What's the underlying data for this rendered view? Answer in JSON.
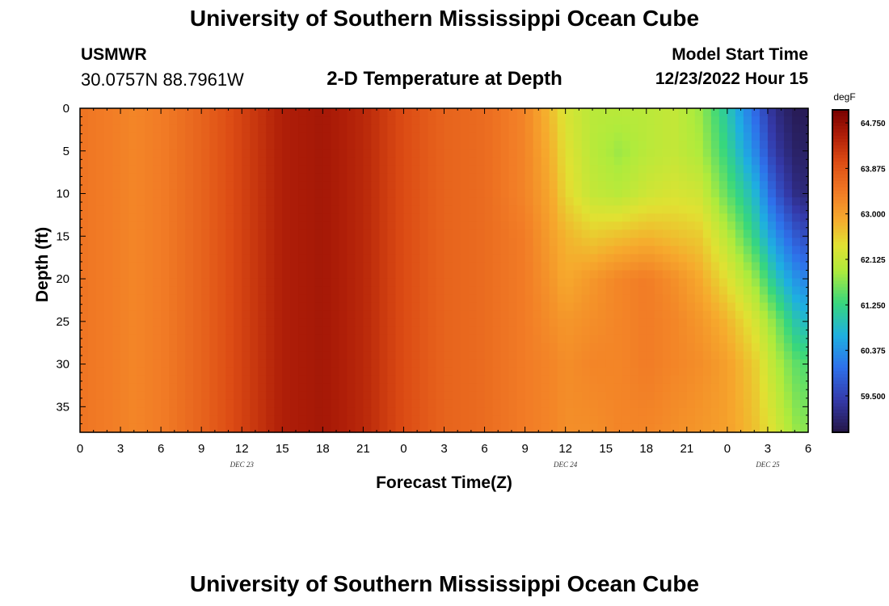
{
  "header": {
    "title": "University of Southern Mississippi Ocean Cube",
    "station": "USMWR",
    "coordinates": "30.0757N  88.7961W",
    "subtitle": "2-D Temperature at Depth",
    "start_label": "Model Start Time",
    "start_value": "12/23/2022 Hour 15"
  },
  "footer": {
    "title": "University of Southern Mississippi Ocean Cube"
  },
  "chart_data": {
    "type": "heatmap",
    "xlabel": "Forecast Time(Z)",
    "ylabel": "Depth (ft)",
    "x_tick_labels": [
      "0",
      "3",
      "6",
      "9",
      "12",
      "15",
      "18",
      "21",
      "0",
      "3",
      "6",
      "9",
      "12",
      "15",
      "18",
      "21",
      "0",
      "3",
      "6"
    ],
    "x_range_hours": [
      0,
      54
    ],
    "date_labels": [
      {
        "text": "DEC 23",
        "hour": 12
      },
      {
        "text": "DEC 24",
        "hour": 36
      },
      {
        "text": "DEC 25",
        "hour": 51
      }
    ],
    "y_ticks": [
      0,
      5,
      10,
      15,
      20,
      25,
      30,
      35
    ],
    "y_range": [
      0,
      38
    ],
    "y_inverted": true,
    "colorbar": {
      "unit": "degF",
      "labels": [
        "64.750",
        "63.875",
        "63.000",
        "62.125",
        "61.250",
        "60.375",
        "59.500"
      ],
      "range": [
        58.8,
        65.0
      ]
    },
    "value_grid": {
      "hours": [
        0,
        4,
        6,
        9,
        12,
        15,
        18,
        21,
        24,
        27,
        30,
        33,
        35,
        36,
        38,
        40,
        42,
        44,
        46,
        48,
        50,
        51.5,
        53,
        54
      ],
      "depths": [
        0,
        5,
        10,
        15,
        20,
        25,
        30,
        38
      ],
      "temps_degF": [
        [
          63.5,
          63.3,
          63.4,
          63.7,
          64.1,
          64.5,
          64.6,
          64.4,
          64.0,
          63.7,
          63.6,
          63.3,
          62.7,
          62.3,
          62.0,
          62.0,
          62.0,
          62.1,
          61.8,
          61.0,
          60.0,
          59.2,
          58.9,
          58.9
        ],
        [
          63.5,
          63.3,
          63.4,
          63.7,
          64.1,
          64.5,
          64.6,
          64.4,
          64.0,
          63.7,
          63.6,
          63.3,
          62.8,
          62.4,
          62.0,
          61.8,
          62.0,
          62.1,
          61.9,
          61.2,
          60.3,
          59.4,
          59.0,
          59.0
        ],
        [
          63.5,
          63.3,
          63.4,
          63.7,
          64.1,
          64.5,
          64.6,
          64.4,
          64.0,
          63.7,
          63.6,
          63.3,
          62.9,
          62.5,
          62.1,
          62.0,
          62.2,
          62.3,
          62.2,
          61.5,
          60.8,
          59.8,
          59.2,
          59.1
        ],
        [
          63.5,
          63.3,
          63.4,
          63.7,
          64.1,
          64.5,
          64.6,
          64.4,
          64.0,
          63.7,
          63.6,
          63.4,
          63.0,
          62.8,
          62.6,
          62.7,
          62.8,
          62.7,
          62.6,
          62.0,
          61.2,
          60.4,
          59.8,
          59.6
        ],
        [
          63.5,
          63.3,
          63.4,
          63.7,
          64.1,
          64.5,
          64.6,
          64.4,
          64.0,
          63.7,
          63.6,
          63.4,
          63.1,
          62.9,
          63.1,
          63.3,
          63.4,
          63.2,
          62.9,
          62.4,
          61.8,
          61.0,
          60.4,
          60.2
        ],
        [
          63.5,
          63.3,
          63.4,
          63.7,
          64.1,
          64.5,
          64.6,
          64.4,
          64.0,
          63.7,
          63.6,
          63.4,
          63.2,
          63.1,
          63.2,
          63.3,
          63.4,
          63.3,
          63.1,
          62.8,
          62.3,
          61.7,
          61.0,
          60.8
        ],
        [
          63.5,
          63.3,
          63.4,
          63.7,
          64.1,
          64.5,
          64.6,
          64.4,
          64.0,
          63.7,
          63.6,
          63.4,
          63.3,
          63.2,
          63.3,
          63.3,
          63.4,
          63.3,
          63.2,
          63.0,
          62.6,
          62.0,
          61.5,
          61.4
        ],
        [
          63.5,
          63.3,
          63.4,
          63.7,
          64.1,
          64.5,
          64.6,
          64.4,
          64.0,
          63.7,
          63.6,
          63.4,
          63.3,
          63.2,
          63.2,
          63.3,
          63.3,
          63.2,
          63.1,
          63.0,
          62.7,
          62.3,
          61.8,
          61.7
        ]
      ]
    }
  }
}
